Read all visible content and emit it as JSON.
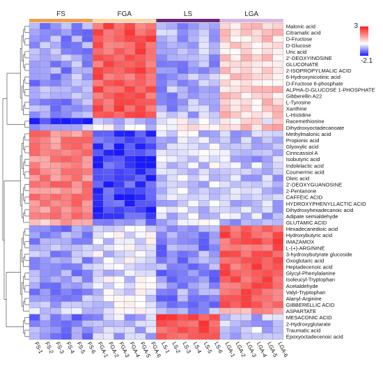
{
  "chart_data": {
    "type": "heatmap",
    "groups": [
      {
        "label": "FS",
        "color": "#f0a050"
      },
      {
        "label": "FGA",
        "color": "#f5d9a8"
      },
      {
        "label": "LS",
        "color": "#6a2a7a"
      },
      {
        "label": "LGA",
        "color": "#d9b8e0"
      }
    ],
    "columns": [
      "FS-1",
      "FS-2",
      "FS-3",
      "FS-4",
      "FS-5",
      "FS-6",
      "FGA-1",
      "FGA-2",
      "FGA-3",
      "FGA-4",
      "FGA-5",
      "FGA-6",
      "LS-1",
      "LS-2",
      "LS-3",
      "LS-4",
      "LS-5",
      "LS-6",
      "LGA-1",
      "LGA-2",
      "LGA-3",
      "LGA-4",
      "LGA-5",
      "LGA-6"
    ],
    "rows": [
      "Malonic acid",
      "Citramalic acid",
      "D-Fructose",
      "D-Glucose",
      "Uric acid",
      "2'-DEOXYINOSINE",
      "GLUCONATE",
      "2-ISOPROPYLMALIC ACID",
      "6-Hydroxynicotinic acid",
      "D-Fructose 6-phosphate",
      "ALPHA-D-GLUCOSE 1-PHOSPHATE",
      "Gibberellin A22",
      "L-Tyrosine",
      "Xanthine",
      "L-Histidine",
      "Racemethionine",
      "Dihydroxyoctadecanoate",
      "Methylmalonic acid",
      "Propionic acid",
      "Glyoxylic acid",
      "Cinncassiol A",
      "Isobutyric acid",
      "Indolelactic acid",
      "Coumermic acid",
      "Oleic acid",
      "2'-DEOXYGUANOSINE",
      "2-Pentanone",
      "CAFFEIC ACID",
      "HYDROXYPHENYLLACTIC ACID",
      "Dihydroxyhexadecanoic acid",
      "Adipate semialdehyde",
      "GLUTAMIC ACID",
      "Hexadecanedioic acid",
      "Hydroxybutyric acid",
      "IMAZAMOX",
      "L-(+)-ARGININE",
      "3-hydroxybutyrate glucoside",
      "Oxoglutaric acid",
      "Heptadecenoic acid",
      "Glycyl-Phenylalanine",
      "Isoleucyl-Tryptophan",
      "Acetaldehyde",
      "Valyl-Tryptophan",
      "Alanyl-Arginine",
      "GIBBERELLIC ACID",
      "ASPARTATE",
      "MESACONIC ACID",
      "2-Hydroxyglutarate",
      "Traumatic acid",
      "Epoxyoctadecenoic acid"
    ],
    "row_group_pattern": [
      [
        -0.9,
        2.1,
        -0.8,
        0.6
      ],
      [
        -0.9,
        2.1,
        -0.8,
        0.6
      ],
      [
        -0.9,
        2.1,
        -0.8,
        0.6
      ],
      [
        -0.9,
        2.1,
        -0.8,
        0.6
      ],
      [
        -0.9,
        2.1,
        -0.8,
        0.6
      ],
      [
        -0.9,
        2.1,
        -0.8,
        0.6
      ],
      [
        -0.9,
        2.1,
        -0.8,
        0.6
      ],
      [
        -0.9,
        2.1,
        -0.8,
        0.6
      ],
      [
        -0.9,
        2.1,
        -0.8,
        0.6
      ],
      [
        -0.9,
        2.1,
        -0.8,
        0.6
      ],
      [
        -0.9,
        2.1,
        -0.8,
        0.6
      ],
      [
        -0.9,
        2.1,
        -0.8,
        0.6
      ],
      [
        -0.9,
        2.1,
        -0.8,
        0.6
      ],
      [
        -0.9,
        2.1,
        -0.8,
        0.6
      ],
      [
        -0.9,
        2.1,
        -0.8,
        0.6
      ],
      [
        -2.0,
        -0.7,
        0.0,
        0.2
      ],
      [
        -0.8,
        -0.3,
        0.2,
        0.8
      ],
      [
        1.6,
        -1.7,
        -0.4,
        -0.6
      ],
      [
        1.6,
        -1.7,
        -0.4,
        -0.6
      ],
      [
        1.6,
        -1.7,
        -0.4,
        -0.6
      ],
      [
        1.6,
        -1.7,
        -0.4,
        -0.6
      ],
      [
        1.6,
        -1.7,
        -0.4,
        -0.6
      ],
      [
        1.6,
        -1.7,
        -0.4,
        -0.6
      ],
      [
        1.6,
        -1.7,
        -0.4,
        -0.6
      ],
      [
        1.6,
        -1.9,
        -0.4,
        -0.6
      ],
      [
        1.6,
        -1.7,
        -0.4,
        -0.6
      ],
      [
        1.6,
        -1.7,
        -0.4,
        -0.6
      ],
      [
        1.6,
        -1.7,
        -0.4,
        -0.6
      ],
      [
        1.6,
        -1.7,
        -0.4,
        -0.6
      ],
      [
        1.6,
        -1.7,
        -0.4,
        -0.6
      ],
      [
        1.6,
        -1.7,
        -0.4,
        -0.6
      ],
      [
        1.0,
        -1.2,
        -0.4,
        -0.6
      ],
      [
        -0.9,
        -0.3,
        -1.0,
        2.1
      ],
      [
        -0.9,
        -0.3,
        -1.0,
        2.1
      ],
      [
        -0.9,
        -0.3,
        -1.0,
        2.1
      ],
      [
        -0.9,
        -0.3,
        -1.0,
        2.1
      ],
      [
        -0.9,
        -0.3,
        -1.0,
        2.1
      ],
      [
        -0.9,
        -0.3,
        -1.0,
        2.1
      ],
      [
        -0.9,
        -0.3,
        -1.0,
        2.1
      ],
      [
        -0.9,
        -0.3,
        -1.0,
        2.1
      ],
      [
        -0.9,
        -0.3,
        -1.0,
        2.1
      ],
      [
        -0.9,
        -0.3,
        -1.0,
        2.1
      ],
      [
        -0.9,
        -0.3,
        -1.0,
        2.1
      ],
      [
        -0.9,
        -0.3,
        -1.0,
        2.1
      ],
      [
        -0.9,
        -0.3,
        -1.0,
        2.1
      ],
      [
        -0.4,
        -0.2,
        -0.9,
        1.2
      ],
      [
        -1.1,
        -0.6,
        2.3,
        -0.5
      ],
      [
        -1.1,
        -0.6,
        2.3,
        -0.5
      ],
      [
        -1.1,
        -0.6,
        2.3,
        -0.5
      ],
      [
        -1.1,
        -0.6,
        2.3,
        -0.5
      ]
    ],
    "color_scale": {
      "min": -2.1,
      "max": 3,
      "min_color": "#1a1aff",
      "mid_color": "#ffffff",
      "max_color": "#ff1a1a"
    },
    "legend": {
      "max_label": "3",
      "min_label": "-2.1",
      "placement": "top-right"
    },
    "row_dendrogram": true,
    "column_clustering": false
  }
}
